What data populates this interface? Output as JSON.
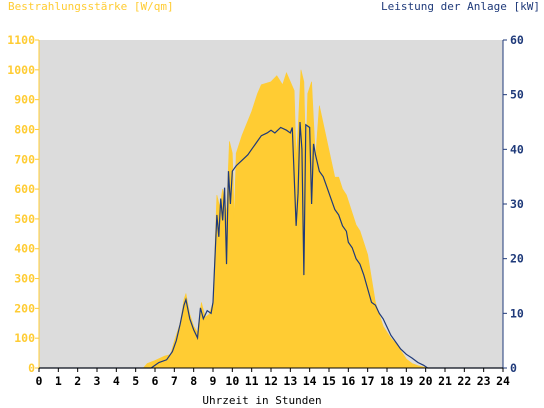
{
  "chart_data": {
    "type": "area",
    "title": "",
    "ylabel_left": "Bestrahlungsstärke [W/qm]",
    "ylabel_right": "Leistung der Anlage [kW]",
    "xlabel": "Uhrzeit in Stunden",
    "xlim": [
      0,
      24
    ],
    "ylim_left": [
      0,
      1100
    ],
    "ylim_right": [
      0,
      60
    ],
    "xticks": [
      0,
      1,
      2,
      3,
      4,
      5,
      6,
      7,
      8,
      9,
      10,
      11,
      12,
      13,
      14,
      15,
      16,
      17,
      18,
      19,
      20,
      21,
      22,
      23,
      24
    ],
    "yticks_left": [
      0,
      100,
      200,
      300,
      400,
      500,
      600,
      700,
      800,
      900,
      1000,
      1100
    ],
    "yticks_right": [
      0,
      10,
      20,
      30,
      40,
      50,
      60
    ],
    "grid": false,
    "series": [
      {
        "name": "Bestrahlungsstärke [W/qm]",
        "axis": "left",
        "style": "area",
        "points": [
          [
            0,
            0
          ],
          [
            5.4,
            0
          ],
          [
            5.6,
            15
          ],
          [
            6.0,
            25
          ],
          [
            6.5,
            40
          ],
          [
            6.8,
            45
          ],
          [
            7.0,
            90
          ],
          [
            7.3,
            150
          ],
          [
            7.5,
            230
          ],
          [
            7.6,
            250
          ],
          [
            7.8,
            180
          ],
          [
            8.0,
            140
          ],
          [
            8.2,
            120
          ],
          [
            8.4,
            220
          ],
          [
            8.6,
            170
          ],
          [
            8.8,
            180
          ],
          [
            9.0,
            220
          ],
          [
            9.1,
            400
          ],
          [
            9.2,
            580
          ],
          [
            9.35,
            540
          ],
          [
            9.5,
            600
          ],
          [
            9.7,
            520
          ],
          [
            9.85,
            760
          ],
          [
            10.0,
            720
          ],
          [
            10.1,
            500
          ],
          [
            10.2,
            720
          ],
          [
            10.5,
            780
          ],
          [
            11.0,
            860
          ],
          [
            11.3,
            920
          ],
          [
            11.5,
            950
          ],
          [
            12.0,
            960
          ],
          [
            12.3,
            980
          ],
          [
            12.6,
            950
          ],
          [
            12.8,
            990
          ],
          [
            13.0,
            960
          ],
          [
            13.2,
            930
          ],
          [
            13.3,
            700
          ],
          [
            13.4,
            800
          ],
          [
            13.55,
            1000
          ],
          [
            13.7,
            960
          ],
          [
            13.8,
            680
          ],
          [
            13.9,
            920
          ],
          [
            14.1,
            960
          ],
          [
            14.3,
            700
          ],
          [
            14.5,
            880
          ],
          [
            14.7,
            820
          ],
          [
            14.9,
            760
          ],
          [
            15.1,
            700
          ],
          [
            15.3,
            640
          ],
          [
            15.5,
            640
          ],
          [
            15.7,
            600
          ],
          [
            15.9,
            580
          ],
          [
            16.0,
            560
          ],
          [
            16.2,
            520
          ],
          [
            16.4,
            480
          ],
          [
            16.6,
            460
          ],
          [
            16.8,
            420
          ],
          [
            17.0,
            380
          ],
          [
            17.2,
            300
          ],
          [
            17.4,
            220
          ],
          [
            17.6,
            180
          ],
          [
            17.8,
            140
          ],
          [
            18.0,
            120
          ],
          [
            18.2,
            100
          ],
          [
            18.5,
            80
          ],
          [
            18.7,
            60
          ],
          [
            19.0,
            30
          ],
          [
            19.3,
            15
          ],
          [
            19.6,
            8
          ],
          [
            20.0,
            2
          ],
          [
            20.3,
            0
          ],
          [
            24,
            0
          ]
        ]
      },
      {
        "name": "Leistung der Anlage [kW]",
        "axis": "right",
        "style": "line",
        "points": [
          [
            0,
            0
          ],
          [
            5.8,
            0
          ],
          [
            6.2,
            1
          ],
          [
            6.6,
            1.5
          ],
          [
            6.9,
            3
          ],
          [
            7.1,
            5
          ],
          [
            7.3,
            8
          ],
          [
            7.5,
            11.5
          ],
          [
            7.6,
            12.5
          ],
          [
            7.8,
            9
          ],
          [
            8.0,
            7
          ],
          [
            8.2,
            5.5
          ],
          [
            8.35,
            11
          ],
          [
            8.5,
            9
          ],
          [
            8.7,
            10.5
          ],
          [
            8.9,
            10
          ],
          [
            9.0,
            12
          ],
          [
            9.1,
            20
          ],
          [
            9.2,
            28
          ],
          [
            9.3,
            24
          ],
          [
            9.4,
            31
          ],
          [
            9.5,
            27
          ],
          [
            9.6,
            33
          ],
          [
            9.7,
            19
          ],
          [
            9.8,
            36
          ],
          [
            9.9,
            30
          ],
          [
            10.0,
            36
          ],
          [
            10.2,
            37
          ],
          [
            10.5,
            38
          ],
          [
            10.8,
            39
          ],
          [
            11.0,
            40
          ],
          [
            11.3,
            41.5
          ],
          [
            11.5,
            42.5
          ],
          [
            11.8,
            43
          ],
          [
            12.0,
            43.5
          ],
          [
            12.2,
            43
          ],
          [
            12.5,
            44
          ],
          [
            12.8,
            43.5
          ],
          [
            13.0,
            43
          ],
          [
            13.1,
            44
          ],
          [
            13.3,
            26
          ],
          [
            13.4,
            32
          ],
          [
            13.5,
            45
          ],
          [
            13.6,
            40
          ],
          [
            13.7,
            17
          ],
          [
            13.8,
            44.5
          ],
          [
            14.0,
            44
          ],
          [
            14.1,
            30
          ],
          [
            14.2,
            41
          ],
          [
            14.3,
            39
          ],
          [
            14.5,
            36
          ],
          [
            14.7,
            35
          ],
          [
            14.9,
            33
          ],
          [
            15.1,
            31
          ],
          [
            15.3,
            29
          ],
          [
            15.5,
            28
          ],
          [
            15.7,
            26
          ],
          [
            15.9,
            25
          ],
          [
            16.0,
            23
          ],
          [
            16.2,
            22
          ],
          [
            16.4,
            20
          ],
          [
            16.6,
            19
          ],
          [
            16.8,
            17
          ],
          [
            17.0,
            14.5
          ],
          [
            17.2,
            12
          ],
          [
            17.4,
            11.5
          ],
          [
            17.6,
            10
          ],
          [
            17.8,
            9
          ],
          [
            18.0,
            7.5
          ],
          [
            18.2,
            6
          ],
          [
            18.5,
            4.5
          ],
          [
            18.7,
            3.5
          ],
          [
            19.0,
            2.5
          ],
          [
            19.3,
            1.8
          ],
          [
            19.6,
            1
          ],
          [
            19.9,
            0.5
          ],
          [
            20.1,
            0
          ],
          [
            24,
            0
          ]
        ]
      }
    ]
  },
  "colors": {
    "plot_bg": "#DCDCDC",
    "area": "#FFCC33",
    "line": "#1F3A7A",
    "left_axis": "#FFCC33",
    "right_axis": "#1F3A7A"
  }
}
